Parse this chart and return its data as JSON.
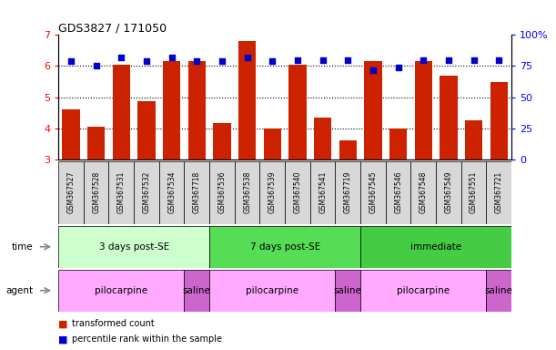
{
  "title": "GDS3827 / 171050",
  "samples": [
    "GSM367527",
    "GSM367528",
    "GSM367531",
    "GSM367532",
    "GSM367534",
    "GSM367718",
    "GSM367536",
    "GSM367538",
    "GSM367539",
    "GSM367540",
    "GSM367541",
    "GSM367719",
    "GSM367545",
    "GSM367546",
    "GSM367548",
    "GSM367549",
    "GSM367551",
    "GSM367721"
  ],
  "transformed_count": [
    4.62,
    4.05,
    6.03,
    4.88,
    6.15,
    6.15,
    4.18,
    6.82,
    3.98,
    6.03,
    4.35,
    3.6,
    6.15,
    4.0,
    6.15,
    5.7,
    4.25,
    5.5
  ],
  "percentile_rank": [
    79,
    75,
    82,
    79,
    82,
    79,
    79,
    82,
    79,
    80,
    80,
    80,
    72,
    74,
    80,
    80,
    80,
    80
  ],
  "ylim_left": [
    3,
    7
  ],
  "ylim_right": [
    0,
    100
  ],
  "yticks_left": [
    3,
    4,
    5,
    6,
    7
  ],
  "yticks_right": [
    0,
    25,
    50,
    75,
    100
  ],
  "bar_color": "#cc2200",
  "dot_color": "#0000cc",
  "sample_bg": "#d8d8d8",
  "time_groups": [
    {
      "label": "3 days post-SE",
      "start": 0,
      "end": 5,
      "color": "#ccffcc"
    },
    {
      "label": "7 days post-SE",
      "start": 6,
      "end": 11,
      "color": "#55dd55"
    },
    {
      "label": "immediate",
      "start": 12,
      "end": 17,
      "color": "#44cc44"
    }
  ],
  "agent_groups": [
    {
      "label": "pilocarpine",
      "start": 0,
      "end": 4,
      "color": "#ffaaff"
    },
    {
      "label": "saline",
      "start": 5,
      "end": 5,
      "color": "#cc66cc"
    },
    {
      "label": "pilocarpine",
      "start": 6,
      "end": 10,
      "color": "#ffaaff"
    },
    {
      "label": "saline",
      "start": 11,
      "end": 11,
      "color": "#cc66cc"
    },
    {
      "label": "pilocarpine",
      "start": 12,
      "end": 16,
      "color": "#ffaaff"
    },
    {
      "label": "saline",
      "start": 17,
      "end": 17,
      "color": "#cc66cc"
    }
  ],
  "legend": [
    {
      "label": "transformed count",
      "color": "#cc2200"
    },
    {
      "label": "percentile rank within the sample",
      "color": "#0000cc"
    }
  ]
}
